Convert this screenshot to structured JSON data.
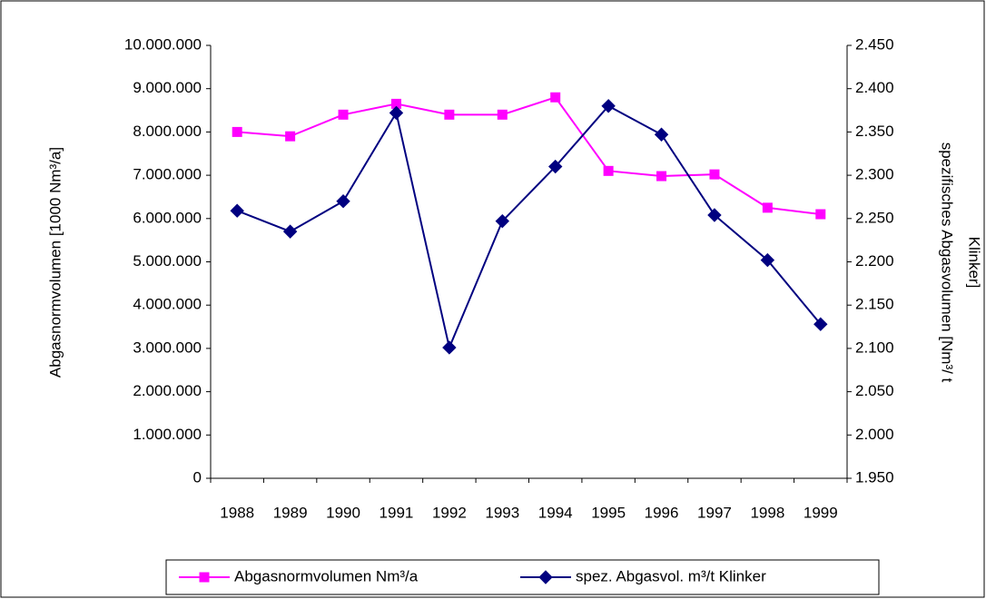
{
  "chart_data": {
    "type": "line",
    "ylabel": "Abgasnormvolumen [1000 Nm³/a]",
    "y2label": [
      "spezifisches Abgasvolumen [Nm³/ t",
      "Klinker]"
    ],
    "categories": [
      "1988",
      "1989",
      "1990",
      "1991",
      "1992",
      "1993",
      "1994",
      "1995",
      "1996",
      "1997",
      "1998",
      "1999"
    ],
    "series": [
      {
        "name": "Abgasnormvolumen Nm³/a",
        "color": "#ff00ff",
        "marker": "square",
        "values": [
          8000000,
          7900000,
          8400000,
          8650000,
          8400000,
          8400000,
          8800000,
          7100000,
          6980000,
          7020000,
          6250000,
          6100000
        ]
      },
      {
        "name": "spez. Abgasvol. m³/t Klinker",
        "color": "#000080",
        "marker": "diamond",
        "axis": "y2",
        "values": [
          2.259,
          2.235,
          2.27,
          2.372,
          2.101,
          2.247,
          2.31,
          2.38,
          2.347,
          2.254,
          2.202,
          2.128
        ]
      }
    ],
    "ylim": [
      0,
      10000000
    ],
    "yticks": [
      0,
      {
        "value": 1000000,
        "label": "1.000.000"
      },
      {
        "value": 2000000,
        "label": "2.000.000"
      },
      {
        "value": 3000000,
        "label": "3.000.000"
      },
      {
        "value": 4000000,
        "label": "4.000.000"
      },
      {
        "value": 5000000,
        "label": "5.000.000"
      },
      {
        "value": 6000000,
        "label": "6.000.000"
      },
      {
        "value": 7000000,
        "label": "7.000.000"
      },
      {
        "value": 8000000,
        "label": "8.000.000"
      },
      {
        "value": 9000000,
        "label": "9.000.000"
      },
      {
        "value": 10000000,
        "label": "10.000.000"
      }
    ],
    "y2lim": [
      1.95,
      2.45
    ],
    "y2ticks": [
      {
        "value": 1.95,
        "label": "1.950"
      },
      {
        "value": 2.0,
        "label": "2.000"
      },
      {
        "value": 2.05,
        "label": "2.050"
      },
      {
        "value": 2.1,
        "label": "2.100"
      },
      {
        "value": 2.15,
        "label": "2.150"
      },
      {
        "value": 2.2,
        "label": "2.200"
      },
      {
        "value": 2.25,
        "label": "2.250"
      },
      {
        "value": 2.3,
        "label": "2.300"
      },
      {
        "value": 2.35,
        "label": "2.350"
      },
      {
        "value": 2.4,
        "label": "2.400"
      },
      {
        "value": 2.45,
        "label": "2.450"
      }
    ],
    "grid": false,
    "legend": "bottom"
  }
}
